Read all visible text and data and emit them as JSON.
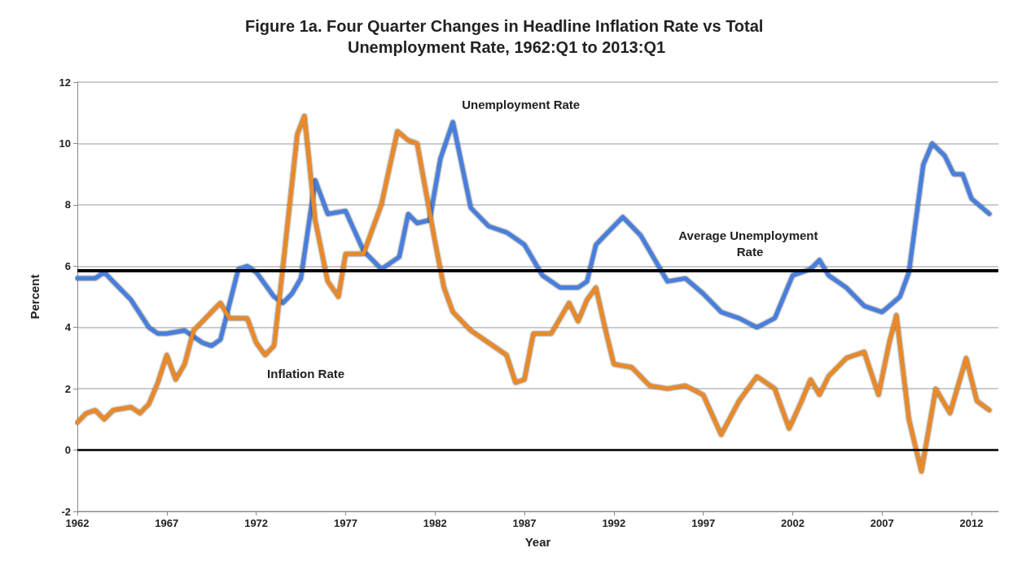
{
  "chart_data": {
    "type": "line",
    "title": "Figure 1a. Four Quarter Changes in Headline Inflation Rate vs Total Unemployment Rate, 1962:Q1 to 2013:Q1",
    "xlabel": "Year",
    "ylabel": "Percent",
    "xlim": [
      1962,
      2013.5
    ],
    "xticks": [
      1962,
      1967,
      1972,
      1977,
      1982,
      1987,
      1992,
      1997,
      2002,
      2007,
      2012
    ],
    "ylim": [
      -2,
      12
    ],
    "yticks": [
      -2,
      0,
      2,
      4,
      6,
      8,
      10,
      12
    ],
    "grid": "y",
    "legend": false,
    "marker": "none",
    "line_style": "solid",
    "series": [
      {
        "name": "Unemployment Rate",
        "color": "#4a7fdc",
        "x": [
          1962,
          1963,
          1963.5,
          1964,
          1965,
          1966,
          1966.5,
          1967,
          1968,
          1969,
          1969.5,
          1970,
          1971,
          1971.5,
          1972,
          1973,
          1973.5,
          1974,
          1974.5,
          1975.3,
          1976,
          1977,
          1978,
          1979,
          1980,
          1980.5,
          1981,
          1981.7,
          1982.3,
          1983,
          1984,
          1985,
          1986,
          1987,
          1988,
          1989,
          1990,
          1990.5,
          1991,
          1991.5,
          1992.5,
          1993.5,
          1995,
          1996,
          1997,
          1998,
          1999,
          2000,
          2001,
          2001.5,
          2002,
          2003,
          2003.5,
          2004,
          2005,
          2006,
          2007,
          2008,
          2008.5,
          2009.3,
          2009.8,
          2010.5,
          2011,
          2011.5,
          2012,
          2013
        ],
        "values": [
          5.6,
          5.6,
          5.8,
          5.5,
          4.9,
          4.0,
          3.8,
          3.8,
          3.9,
          3.5,
          3.4,
          3.6,
          5.9,
          6.0,
          5.8,
          5.0,
          4.8,
          5.1,
          5.6,
          8.8,
          7.7,
          7.8,
          6.5,
          5.9,
          6.3,
          7.7,
          7.4,
          7.5,
          9.5,
          10.7,
          7.9,
          7.3,
          7.1,
          6.7,
          5.7,
          5.3,
          5.3,
          5.5,
          6.7,
          7.0,
          7.6,
          7.0,
          5.5,
          5.6,
          5.1,
          4.5,
          4.3,
          4.0,
          4.3,
          5.0,
          5.7,
          5.9,
          6.2,
          5.7,
          5.3,
          4.7,
          4.5,
          5.0,
          5.8,
          9.3,
          10.0,
          9.6,
          9.0,
          9.0,
          8.2,
          7.7
        ]
      },
      {
        "name": "Inflation Rate",
        "color": "#e8892b",
        "x": [
          1962,
          1962.5,
          1963,
          1963.5,
          1964,
          1965,
          1965.5,
          1966,
          1966.5,
          1967,
          1967.5,
          1968,
          1968.5,
          1969,
          1970,
          1970.5,
          1971.5,
          1972,
          1972.5,
          1973,
          1973.5,
          1974.3,
          1974.7,
          1975.3,
          1976,
          1976.6,
          1977,
          1978,
          1979,
          1979.9,
          1980.5,
          1981,
          1982,
          1982.5,
          1983,
          1984,
          1985,
          1986,
          1986.5,
          1987,
          1987.5,
          1988.5,
          1989.5,
          1990,
          1990.5,
          1991,
          1991.5,
          1992,
          1993,
          1994,
          1995,
          1996,
          1997,
          1998,
          1999,
          2000,
          2001,
          2001.8,
          2002.5,
          2003,
          2003.5,
          2004,
          2005,
          2006,
          2006.8,
          2007.4,
          2007.8,
          2008.5,
          2009.2,
          2010,
          2010.8,
          2011.7,
          2012.3,
          2013
        ],
        "values": [
          0.9,
          1.2,
          1.3,
          1.0,
          1.3,
          1.4,
          1.2,
          1.5,
          2.2,
          3.1,
          2.3,
          2.8,
          3.9,
          4.2,
          4.8,
          4.3,
          4.3,
          3.5,
          3.1,
          3.4,
          6.0,
          10.3,
          10.9,
          7.5,
          5.5,
          5.0,
          6.4,
          6.4,
          8.0,
          10.4,
          10.1,
          10.0,
          6.8,
          5.3,
          4.5,
          3.9,
          3.5,
          3.1,
          2.2,
          2.3,
          3.8,
          3.8,
          4.8,
          4.2,
          4.9,
          5.3,
          4.0,
          2.8,
          2.7,
          2.1,
          2.0,
          2.1,
          1.8,
          0.5,
          1.6,
          2.4,
          2.0,
          0.7,
          1.6,
          2.3,
          1.8,
          2.4,
          3.0,
          3.2,
          1.8,
          3.5,
          4.4,
          1.0,
          -0.7,
          2.0,
          1.2,
          3.0,
          1.6,
          1.3
        ]
      }
    ],
    "ref_lines": [
      {
        "axis": "y",
        "value": 5.85,
        "label": "Average Unemployment Rate",
        "color": "#000000"
      },
      {
        "axis": "y",
        "value": 0,
        "color": "#000000"
      }
    ]
  }
}
